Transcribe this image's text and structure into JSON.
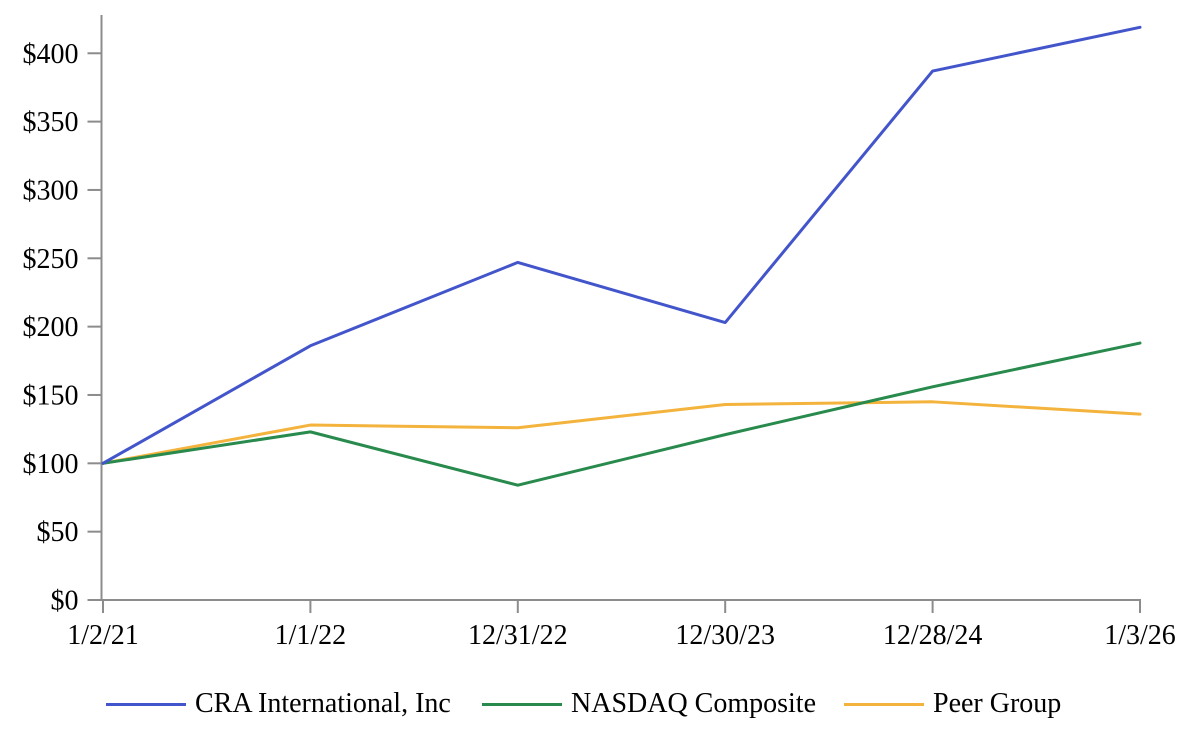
{
  "chart_data": {
    "type": "line",
    "title": "",
    "xlabel": "",
    "ylabel": "",
    "categories": [
      "1/2/21",
      "1/1/22",
      "12/31/22",
      "12/30/23",
      "12/28/24",
      "1/3/26"
    ],
    "series": [
      {
        "name": "CRA International, Inc",
        "color": "#4355CB",
        "values": [
          100,
          186,
          247,
          203,
          387,
          419
        ]
      },
      {
        "name": "NASDAQ Composite",
        "color": "#288A4C",
        "values": [
          100,
          123,
          84,
          121,
          156,
          188
        ]
      },
      {
        "name": "Peer Group",
        "color": "#F3B33C",
        "values": [
          100,
          128,
          126,
          143,
          145,
          136
        ]
      }
    ],
    "y_ticks": [
      {
        "label": "$0",
        "value": 0
      },
      {
        "label": "$50",
        "value": 50
      },
      {
        "label": "$100",
        "value": 100
      },
      {
        "label": "$150",
        "value": 150
      },
      {
        "label": "$200",
        "value": 200
      },
      {
        "label": "$250",
        "value": 250
      },
      {
        "label": "$300",
        "value": 300
      },
      {
        "label": "$350",
        "value": 350
      },
      {
        "label": "$400",
        "value": 400
      }
    ],
    "ylim": [
      0,
      428
    ],
    "grid": false,
    "legend_position": "bottom",
    "axis_color": "#8C8C8C",
    "text_color": "#000000"
  }
}
